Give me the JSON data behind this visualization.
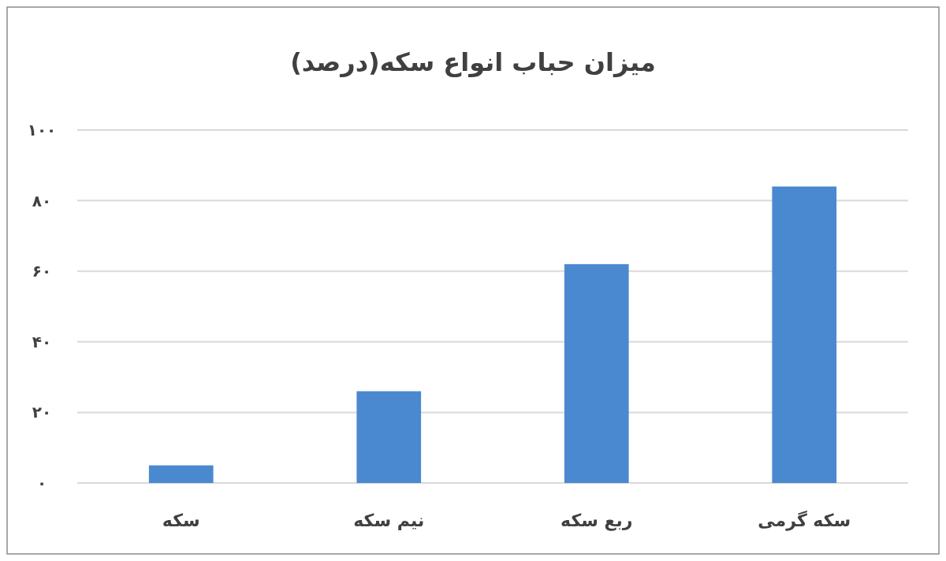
{
  "chart_data": {
    "type": "bar",
    "title": "میزان حباب انواع سکه(درصد)",
    "categories": [
      "سکه",
      "نیم سکه",
      "ربع سکه",
      "سکه گرمی"
    ],
    "values": [
      5,
      26,
      62,
      84
    ],
    "color": "#4a89cf",
    "ylim": [
      0,
      100
    ],
    "yticks": [
      {
        "value": 0,
        "label": "۰"
      },
      {
        "value": 20,
        "label": "۲۰"
      },
      {
        "value": 40,
        "label": "۴۰"
      },
      {
        "value": 60,
        "label": "۶۰"
      },
      {
        "value": 80,
        "label": "۸۰"
      },
      {
        "value": 100,
        "label": "۱۰۰"
      }
    ],
    "grid": "y"
  }
}
